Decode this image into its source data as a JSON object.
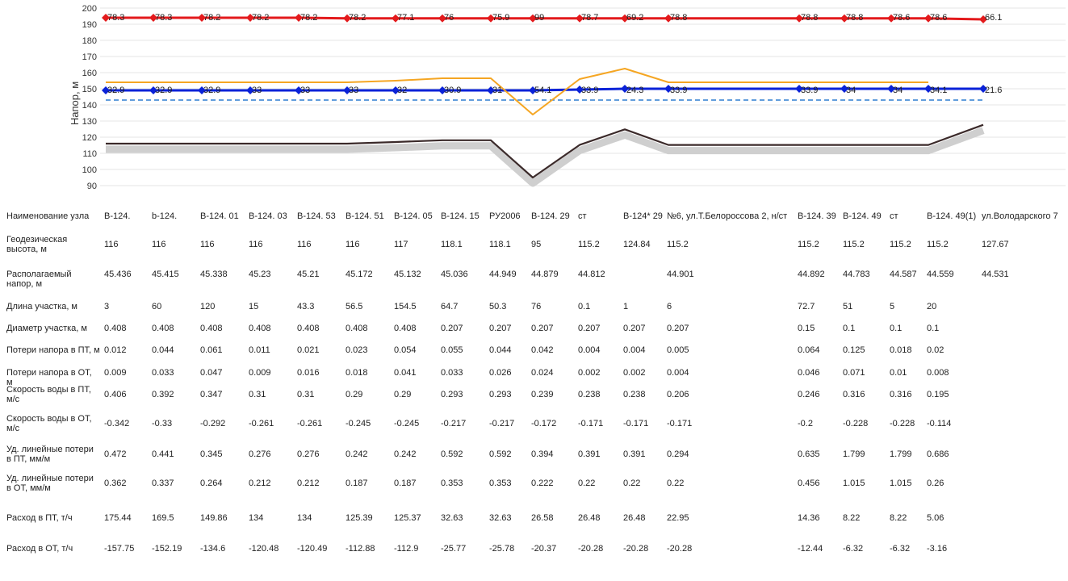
{
  "chart_data": {
    "type": "line",
    "ylabel": "Напор, м",
    "yticks": [
      90,
      100,
      110,
      120,
      130,
      140,
      150,
      160,
      170,
      180,
      190,
      200
    ],
    "ylim": [
      85,
      205
    ],
    "grid": true,
    "colors": {
      "supply": "#e31a1c",
      "return": "#0a22d8",
      "piezo": "#f5a623",
      "static": "#2f7fd0",
      "terrain": "#3b2a2a"
    },
    "series": [
      {
        "key": "supply",
        "values": [
          194,
          194,
          194,
          194,
          194,
          193.6,
          193.6,
          193.6,
          193.6,
          193.6,
          193.6,
          193.6,
          193.6,
          193.6,
          193.6,
          193.6,
          193.6,
          193
        ]
      },
      {
        "key": "return",
        "values": [
          149,
          149,
          149,
          149,
          149,
          149,
          149,
          149,
          149,
          149,
          149.5,
          150,
          150,
          150,
          150,
          150,
          150,
          150
        ]
      },
      {
        "key": "piezo",
        "values": [
          154,
          154,
          154,
          154,
          154,
          154,
          155,
          156.5,
          156.5,
          134,
          156,
          162.5,
          154,
          154,
          154,
          154,
          154
        ]
      },
      {
        "key": "static",
        "values": [
          143,
          143
        ]
      },
      {
        "key": "terrain",
        "values": [
          116,
          116,
          116,
          116,
          116,
          116,
          117,
          118.1,
          118.1,
          95,
          115.2,
          124.84,
          115.2,
          115.2,
          115.2,
          115.2,
          115.2,
          127.67
        ]
      }
    ],
    "top_labels": [
      "78.3",
      "78.3",
      "78.2",
      "78.2",
      "78.2",
      "78.2",
      "77.1",
      "76",
      "75.9",
      "99",
      "78.7",
      "69.2",
      "78.8",
      "78.8",
      "78.8",
      "78.6",
      "78.6",
      "66.1"
    ],
    "mid_labels": [
      "32.9",
      "32.9",
      "32.9",
      "33",
      "33",
      "33",
      "32",
      "30.9",
      "31",
      "54.1",
      "33.9",
      "24.3",
      "33.9",
      "33.9",
      "34",
      "34",
      "34.1",
      "21.6"
    ]
  },
  "table": {
    "rows": [
      {
        "label": "Наименование узла",
        "values": [
          "В-124.",
          "b-124.",
          "В-124. 01",
          "В-124. 03",
          "В-124. 53",
          "В-124. 51",
          "В-124. 05",
          "В-124. 15",
          "РУ2006",
          "В-124. 29",
          "ст",
          "В-124* 29",
          "№6, ул.Т.Белороссова 2, н/ст",
          "В-124. 39",
          "В-124. 49",
          "ст",
          "В-124. 49(1)",
          "ул.Володарского 7"
        ]
      },
      {
        "label": "Геодезическая высота, м",
        "values": [
          "116",
          "116",
          "116",
          "116",
          "116",
          "116",
          "117",
          "118.1",
          "118.1",
          "95",
          "115.2",
          "124.84",
          "115.2",
          "115.2",
          "115.2",
          "115.2",
          "115.2",
          "127.67"
        ]
      },
      {
        "label": "Располагаемый напор, м",
        "values": [
          "45.436",
          "45.415",
          "45.338",
          "45.23",
          "45.21",
          "45.172",
          "45.132",
          "45.036",
          "44.949",
          "44.879",
          "44.812",
          "",
          "44.901",
          "44.892",
          "44.783",
          "44.587",
          "44.559",
          "44.531"
        ]
      },
      {
        "label": "Длина участка, м",
        "values": [
          "3",
          "60",
          "120",
          "15",
          "43.3",
          "56.5",
          "154.5",
          "64.7",
          "50.3",
          "76",
          "0.1",
          "1",
          "6",
          "72.7",
          "51",
          "5",
          "20",
          ""
        ]
      },
      {
        "label": "Диаметр участка, м",
        "values": [
          "0.408",
          "0.408",
          "0.408",
          "0.408",
          "0.408",
          "0.408",
          "0.408",
          "0.207",
          "0.207",
          "0.207",
          "0.207",
          "0.207",
          "0.207",
          "0.15",
          "0.1",
          "0.1",
          "0.1",
          ""
        ]
      },
      {
        "label": "Потери напора в ПТ, м",
        "values": [
          "0.012",
          "0.044",
          "0.061",
          "0.011",
          "0.021",
          "0.023",
          "0.054",
          "0.055",
          "0.044",
          "0.042",
          "0.004",
          "0.004",
          "0.005",
          "0.064",
          "0.125",
          "0.018",
          "0.02",
          ""
        ]
      },
      {
        "label": "Потери напора в ОТ, м",
        "values": [
          "0.009",
          "0.033",
          "0.047",
          "0.009",
          "0.016",
          "0.018",
          "0.041",
          "0.033",
          "0.026",
          "0.024",
          "0.002",
          "0.002",
          "0.004",
          "0.046",
          "0.071",
          "0.01",
          "0.008",
          ""
        ]
      },
      {
        "label": "Скорость воды в ПТ, м/с",
        "values": [
          "0.406",
          "0.392",
          "0.347",
          "0.31",
          "0.31",
          "0.29",
          "0.29",
          "0.293",
          "0.293",
          "0.239",
          "0.238",
          "0.238",
          "0.206",
          "0.246",
          "0.316",
          "0.316",
          "0.195",
          ""
        ]
      },
      {
        "label": "Скорость воды в ОТ, м/с",
        "values": [
          "-0.342",
          "-0.33",
          "-0.292",
          "-0.261",
          "-0.261",
          "-0.245",
          "-0.245",
          "-0.217",
          "-0.217",
          "-0.172",
          "-0.171",
          "-0.171",
          "-0.171",
          "-0.2",
          "-0.228",
          "-0.228",
          "-0.114",
          ""
        ]
      },
      {
        "label": "Уд. линейные потери в ПТ, мм/м",
        "values": [
          "0.472",
          "0.441",
          "0.345",
          "0.276",
          "0.276",
          "0.242",
          "0.242",
          "0.592",
          "0.592",
          "0.394",
          "0.391",
          "0.391",
          "0.294",
          "0.635",
          "1.799",
          "1.799",
          "0.686",
          ""
        ]
      },
      {
        "label": "Уд. линейные потери в ОТ, мм/м",
        "values": [
          "0.362",
          "0.337",
          "0.264",
          "0.212",
          "0.212",
          "0.187",
          "0.187",
          "0.353",
          "0.353",
          "0.222",
          "0.22",
          "0.22",
          "0.22",
          "0.456",
          "1.015",
          "1.015",
          "0.26",
          ""
        ]
      },
      {
        "label": "Расход в ПТ, т/ч",
        "values": [
          "175.44",
          "169.5",
          "149.86",
          "134",
          "134",
          "125.39",
          "125.37",
          "32.63",
          "32.63",
          "26.58",
          "26.48",
          "26.48",
          "22.95",
          "14.36",
          "8.22",
          "8.22",
          "5.06",
          ""
        ]
      },
      {
        "label": "Расход в ОТ, т/ч",
        "values": [
          "-157.75",
          "-152.19",
          "-134.6",
          "-120.48",
          "-120.49",
          "-112.88",
          "-112.9",
          "-25.77",
          "-25.78",
          "-20.37",
          "-20.28",
          "-20.28",
          "-20.28",
          "-12.44",
          "-6.32",
          "-6.32",
          "-3.16",
          ""
        ]
      }
    ]
  }
}
